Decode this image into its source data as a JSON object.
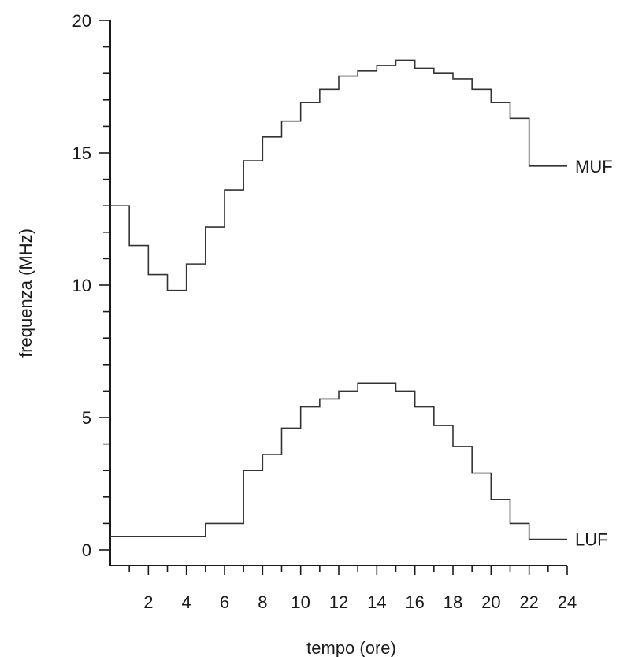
{
  "chart_data": {
    "type": "line",
    "step": true,
    "xlabel": "tempo (ore)",
    "ylabel": "frequenza (MHz)",
    "xlim": [
      0,
      24
    ],
    "ylim": [
      0,
      20
    ],
    "x_ticks": [
      2,
      4,
      6,
      8,
      10,
      12,
      14,
      16,
      18,
      20,
      22,
      24
    ],
    "y_ticks": [
      0,
      5,
      10,
      15,
      20
    ],
    "grid": false,
    "legend": "none",
    "series": [
      {
        "name": "MUF",
        "x": [
          0,
          1,
          2,
          3,
          4,
          5,
          6,
          7,
          8,
          9,
          10,
          11,
          12,
          13,
          14,
          15,
          16,
          17,
          18,
          19,
          20,
          21,
          22,
          23,
          24
        ],
        "values": [
          13.0,
          11.5,
          10.4,
          9.8,
          10.8,
          12.2,
          13.6,
          14.7,
          15.6,
          16.2,
          16.9,
          17.4,
          17.9,
          18.1,
          18.3,
          18.5,
          18.2,
          18.0,
          17.8,
          17.4,
          16.9,
          16.3,
          14.5,
          14.5,
          14.5
        ]
      },
      {
        "name": "LUF",
        "x": [
          0,
          1,
          2,
          3,
          4,
          5,
          6,
          7,
          8,
          9,
          10,
          11,
          12,
          13,
          14,
          15,
          16,
          17,
          18,
          19,
          20,
          21,
          22,
          23,
          24
        ],
        "values": [
          0.5,
          0.5,
          0.5,
          0.5,
          0.5,
          1.0,
          1.0,
          3.0,
          3.6,
          4.6,
          5.4,
          5.7,
          6.0,
          6.3,
          6.3,
          6.0,
          5.4,
          4.7,
          3.9,
          2.9,
          1.9,
          1.0,
          0.4,
          0.4,
          0.4
        ]
      }
    ]
  }
}
